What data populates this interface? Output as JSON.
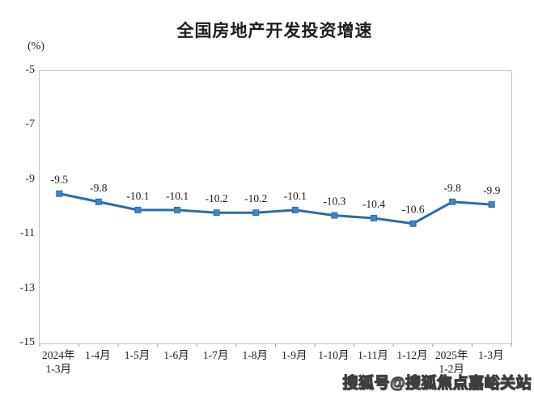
{
  "chart_data": {
    "type": "line",
    "title": "全国房地产开发投资增速",
    "ylabel": "(%)",
    "categories": [
      "2024年\n1-3月",
      "1-4月",
      "1-5月",
      "1-6月",
      "1-7月",
      "1-8月",
      "1-9月",
      "1-10月",
      "1-11月",
      "1-12月",
      "2025年\n1-2月",
      "1-3月"
    ],
    "values": [
      -9.5,
      -9.8,
      -10.1,
      -10.1,
      -10.2,
      -10.2,
      -10.1,
      -10.3,
      -10.4,
      -10.6,
      -9.8,
      -9.9
    ],
    "data_labels": [
      "-9.5",
      "-9.8",
      "-10.1",
      "-10.1",
      "-10.2",
      "-10.2",
      "-10.1",
      "-10.3",
      "-10.4",
      "-10.6",
      "-9.8",
      "-9.9"
    ],
    "ylim": [
      -15,
      -5
    ],
    "y_ticks": [
      "-5",
      "-7",
      "-9",
      "-11",
      "-13",
      "-15"
    ],
    "grid": false,
    "legend": "none",
    "line_color": "#2A6CB0",
    "marker": "square",
    "marker_fill": "#3E86C9",
    "marker_stroke": "#2A6CB0",
    "axis_border_color": "#c6c6c6",
    "tick_color": "#9b9b9b",
    "label_color": "#1a1a1a"
  },
  "watermark": {
    "text": "搜狐号@搜狐焦点嘉峪关站"
  }
}
